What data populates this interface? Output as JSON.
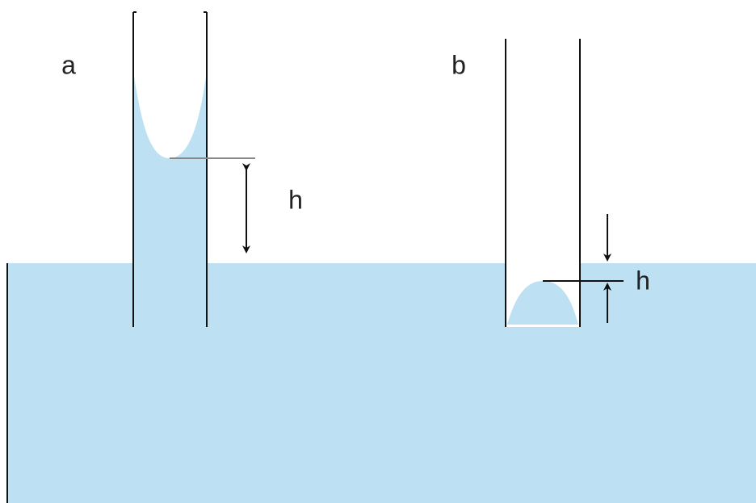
{
  "panels": [
    {
      "label": "a",
      "height_label": "h"
    },
    {
      "label": "b",
      "height_label": "h"
    }
  ]
}
